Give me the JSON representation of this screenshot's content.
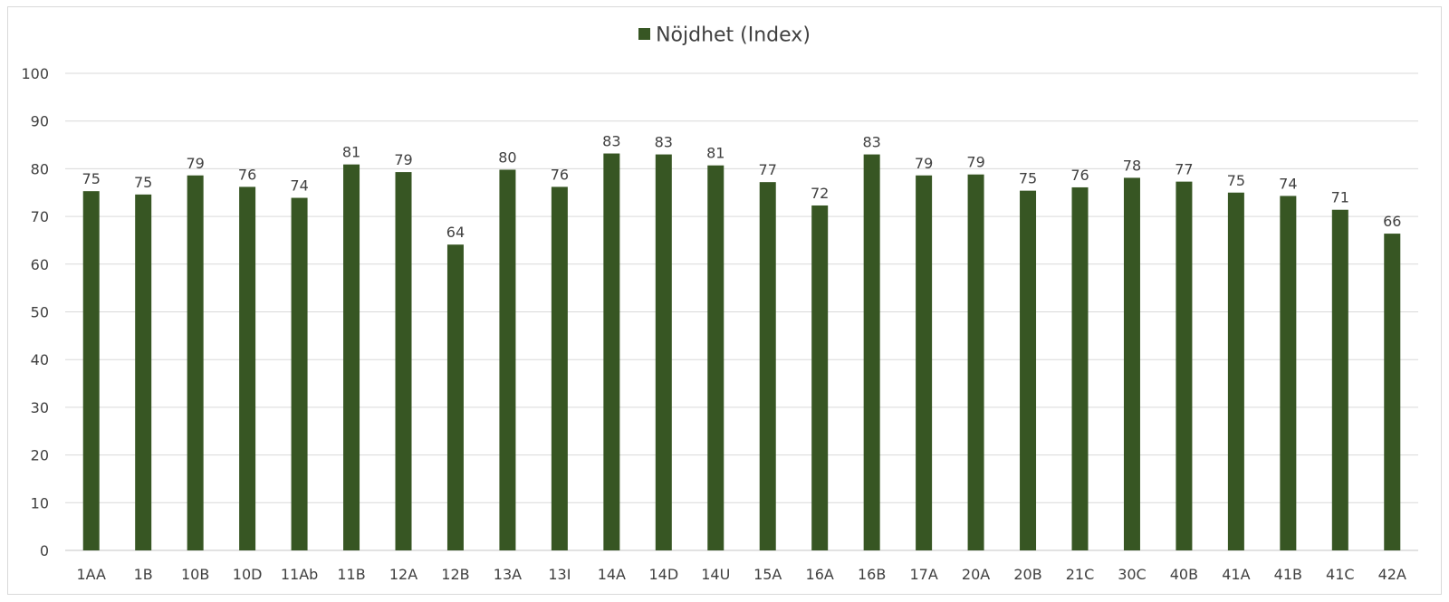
{
  "chart_data": {
    "type": "bar",
    "categories": [
      "1AA",
      "1B",
      "10B",
      "10D",
      "11Ab",
      "11B",
      "12A",
      "12B",
      "13A",
      "13I",
      "14A",
      "14D",
      "14U",
      "15A",
      "16A",
      "16B",
      "17A",
      "20A",
      "20B",
      "21C",
      "30C",
      "40B",
      "41A",
      "41B",
      "41C",
      "42A"
    ],
    "series": [
      {
        "name": "Nöjdhet (Index)",
        "color": "#375623",
        "values": [
          75.3,
          74.6,
          78.6,
          76.2,
          73.9,
          80.9,
          79.3,
          64.1,
          79.8,
          76.2,
          83.2,
          83.0,
          80.7,
          77.2,
          72.3,
          83.0,
          78.6,
          78.8,
          75.4,
          76.1,
          78.1,
          77.3,
          75.0,
          74.3,
          71.4,
          66.4
        ],
        "data_labels": [
          "75",
          "75",
          "79",
          "76",
          "74",
          "81",
          "79",
          "64",
          "80",
          "76",
          "83",
          "83",
          "81",
          "77",
          "72",
          "83",
          "79",
          "79",
          "75",
          "76",
          "78",
          "77",
          "75",
          "74",
          "71",
          "66"
        ]
      }
    ],
    "ylim": [
      0,
      100
    ],
    "yticks": [
      "0",
      "10",
      "20",
      "30",
      "40",
      "50",
      "60",
      "70",
      "80",
      "90",
      "100"
    ],
    "grid": true,
    "legend_position": "top-center",
    "gridline_color": "#d9d9d9"
  }
}
